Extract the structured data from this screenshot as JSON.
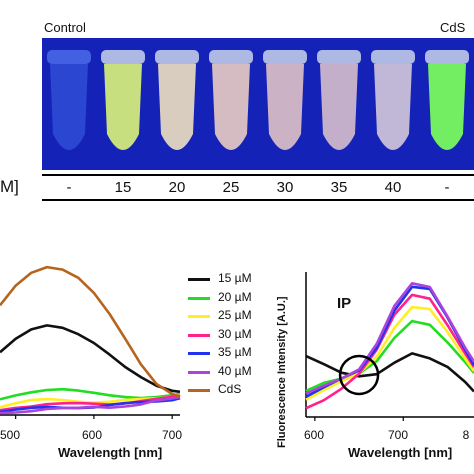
{
  "photo": {
    "label_left": "Control",
    "label_right": "CdS",
    "row_unit": "M]",
    "concentrations": [
      "-",
      "15",
      "20",
      "25",
      "30",
      "35",
      "40",
      "-"
    ],
    "tube_colors": [
      "#3a5fe0",
      "#d8f07a",
      "#eadcc0",
      "#e6c9c2",
      "#dcbfc6",
      "#d4bccc",
      "#d0c4d8",
      "#7cff5a"
    ],
    "background_color": "#1422b8"
  },
  "left_plot": {
    "xlabel": "Wavelength [nm]",
    "x_ticks": [
      "500",
      "600",
      "700"
    ]
  },
  "legend": {
    "entries": [
      {
        "name": "15 µM",
        "color": "#111111"
      },
      {
        "name": "20 µM",
        "color": "#22dd22"
      },
      {
        "name": "25 µM",
        "color": "#ffee22"
      },
      {
        "name": "30 µM",
        "color": "#ff2288"
      },
      {
        "name": "35 µM",
        "color": "#2233ee"
      },
      {
        "name": "40 µM",
        "color": "#aa44dd"
      },
      {
        "name": "CdS",
        "color": "#b5651d"
      }
    ]
  },
  "right_plot": {
    "ylabel": "Fluorescence Intensity [A.U.]",
    "xlabel": "Wavelength [nm]",
    "x_ticks": [
      "600",
      "700",
      "8"
    ],
    "annotation": "IP"
  },
  "chart_data": [
    {
      "type": "line",
      "xlabel": "Wavelength [nm]",
      "ylabel": "",
      "xlim": [
        480,
        710
      ],
      "ylim": [
        0,
        100
      ],
      "x": [
        480,
        500,
        520,
        540,
        560,
        580,
        600,
        620,
        640,
        660,
        680,
        700,
        710
      ],
      "series": [
        {
          "name": "15 µM",
          "values": [
            40,
            48,
            54,
            57,
            56,
            52,
            46,
            38,
            30,
            24,
            19,
            16,
            15
          ]
        },
        {
          "name": "20 µM",
          "values": [
            10,
            13,
            15,
            16,
            16,
            15,
            14,
            13,
            12,
            11,
            11,
            12,
            13
          ]
        },
        {
          "name": "25 µM",
          "values": [
            5,
            7,
            9,
            10,
            10,
            9,
            8,
            8,
            9,
            10,
            11,
            12,
            13
          ]
        },
        {
          "name": "30 µM",
          "values": [
            3,
            5,
            6,
            7,
            7,
            7,
            7,
            7,
            8,
            9,
            10,
            11,
            12
          ]
        },
        {
          "name": "35 µM",
          "values": [
            2,
            3,
            4,
            5,
            5,
            5,
            5,
            6,
            7,
            8,
            9,
            10,
            11
          ]
        },
        {
          "name": "40 µM",
          "values": [
            1,
            2,
            3,
            4,
            4,
            4,
            5,
            5,
            6,
            7,
            9,
            10,
            11
          ]
        },
        {
          "name": "CdS",
          "values": [
            70,
            82,
            90,
            94,
            93,
            88,
            78,
            64,
            48,
            32,
            20,
            14,
            12
          ]
        }
      ]
    },
    {
      "type": "line",
      "xlabel": "Wavelength [nm]",
      "ylabel": "Fluorescence Intensity [A.U.]",
      "xlim": [
        590,
        780
      ],
      "ylim": [
        0,
        100
      ],
      "x": [
        590,
        610,
        630,
        650,
        670,
        690,
        710,
        730,
        750,
        770,
        780
      ],
      "series": [
        {
          "name": "15 µM",
          "values": [
            42,
            36,
            30,
            28,
            30,
            38,
            44,
            40,
            34,
            24,
            18
          ]
        },
        {
          "name": "20 µM",
          "values": [
            18,
            24,
            27,
            30,
            38,
            54,
            66,
            64,
            52,
            38,
            30
          ]
        },
        {
          "name": "25 µM",
          "values": [
            12,
            18,
            24,
            30,
            42,
            62,
            76,
            74,
            58,
            40,
            32
          ]
        },
        {
          "name": "30 µM",
          "values": [
            6,
            12,
            20,
            30,
            46,
            70,
            84,
            82,
            64,
            44,
            34
          ]
        },
        {
          "name": "35 µM",
          "values": [
            14,
            20,
            26,
            32,
            48,
            74,
            90,
            88,
            68,
            46,
            36
          ]
        },
        {
          "name": "40 µM",
          "values": [
            16,
            22,
            27,
            33,
            50,
            76,
            92,
            90,
            70,
            48,
            38
          ]
        }
      ]
    }
  ]
}
